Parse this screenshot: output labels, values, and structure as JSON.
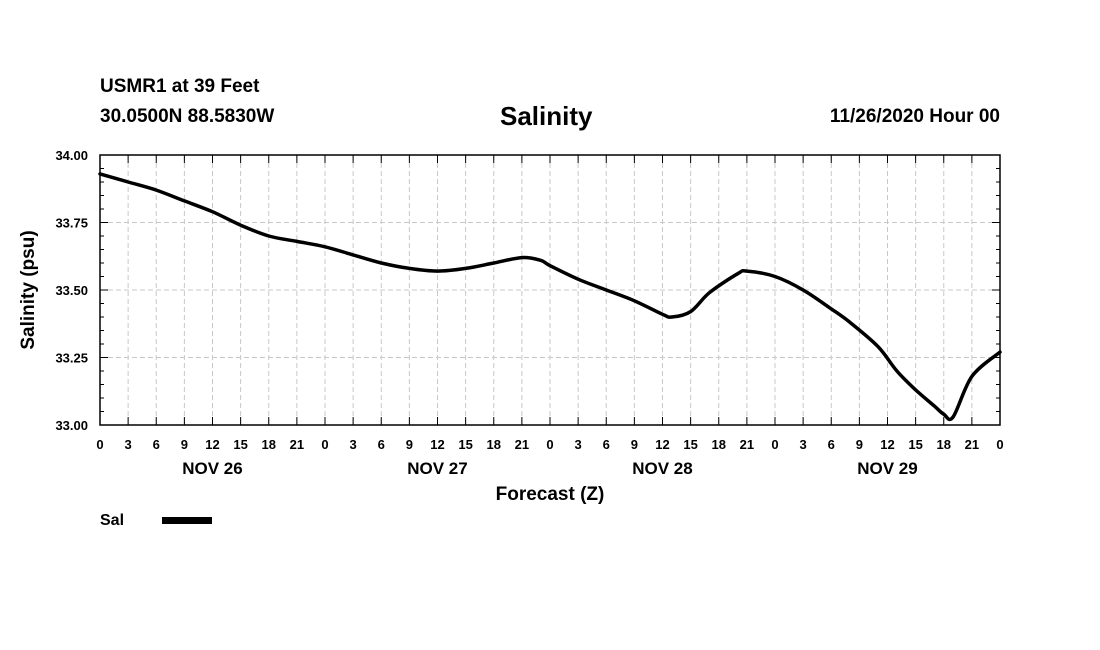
{
  "header": {
    "station": "USMR1 at 39 Feet",
    "coords": "30.0500N 88.5830W",
    "title": "Salinity",
    "date": "11/26/2020 Hour 00"
  },
  "chart_data": {
    "type": "line",
    "title": "Salinity",
    "xlabel": "Forecast (Z)",
    "ylabel": "Salinity (psu)",
    "ylim": [
      33.0,
      34.0
    ],
    "yticks": [
      "33.00",
      "33.25",
      "33.50",
      "33.75",
      "34.00"
    ],
    "xlim_hours": [
      0,
      96
    ],
    "x_tick_labels": [
      "0",
      "3",
      "6",
      "9",
      "12",
      "15",
      "18",
      "21",
      "0",
      "3",
      "6",
      "9",
      "12",
      "15",
      "18",
      "21",
      "0",
      "3",
      "6",
      "9",
      "12",
      "15",
      "18",
      "21",
      "0",
      "3",
      "6",
      "9",
      "12",
      "15",
      "18",
      "21",
      "0"
    ],
    "day_labels": [
      "NOV 26",
      "NOV 27",
      "NOV 28",
      "NOV 29"
    ],
    "grid": true,
    "legend": [
      {
        "label": "Sal",
        "color": "#000000"
      }
    ],
    "series": [
      {
        "name": "Sal",
        "color": "#000000",
        "x_hours": [
          0,
          3,
          6,
          9,
          12,
          15,
          18,
          21,
          24,
          27,
          30,
          33,
          36,
          39,
          42,
          45,
          47,
          48,
          51,
          54,
          57,
          60,
          61,
          63,
          65,
          68,
          69,
          72,
          75,
          78,
          80,
          83,
          85,
          87,
          89,
          90,
          91,
          93,
          96
        ],
        "values": [
          33.93,
          33.9,
          33.87,
          33.83,
          33.79,
          33.74,
          33.7,
          33.68,
          33.66,
          33.63,
          33.6,
          33.58,
          33.57,
          33.58,
          33.6,
          33.62,
          33.61,
          33.59,
          33.54,
          33.5,
          33.46,
          33.41,
          33.4,
          33.42,
          33.49,
          33.56,
          33.57,
          33.55,
          33.5,
          33.43,
          33.38,
          33.29,
          33.2,
          33.13,
          33.07,
          33.04,
          33.03,
          33.18,
          33.27
        ]
      }
    ]
  }
}
